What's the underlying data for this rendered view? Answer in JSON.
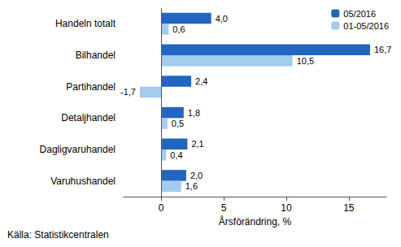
{
  "chart_data": {
    "type": "bar",
    "orientation": "horizontal",
    "categories": [
      "Handeln totalt",
      "Bilhandel",
      "Partihandel",
      "Detaljhandel",
      "Dagligvaruhandel",
      "Varuhushandel"
    ],
    "series": [
      {
        "name": "05/2016",
        "color": "#2166c0",
        "values": [
          4.0,
          16.7,
          2.4,
          1.8,
          2.1,
          2.0
        ],
        "value_labels": [
          "4,0",
          "16,7",
          "2,4",
          "1,8",
          "2,1",
          "2,0"
        ]
      },
      {
        "name": "01-05/2016",
        "color": "#a3ccef",
        "values": [
          0.6,
          10.5,
          -1.7,
          0.5,
          0.4,
          1.6
        ],
        "value_labels": [
          "0,6",
          "10,5",
          "-1,7",
          "0,5",
          "0,4",
          "1,6"
        ]
      }
    ],
    "x_label": "Årsförändring, %",
    "source": "Källa: Statistikcentralen",
    "xlim": [
      -3,
      18
    ],
    "xticks": [
      0,
      5,
      10,
      15
    ],
    "grid": false,
    "legend": "upper right",
    "data_labels": true
  }
}
